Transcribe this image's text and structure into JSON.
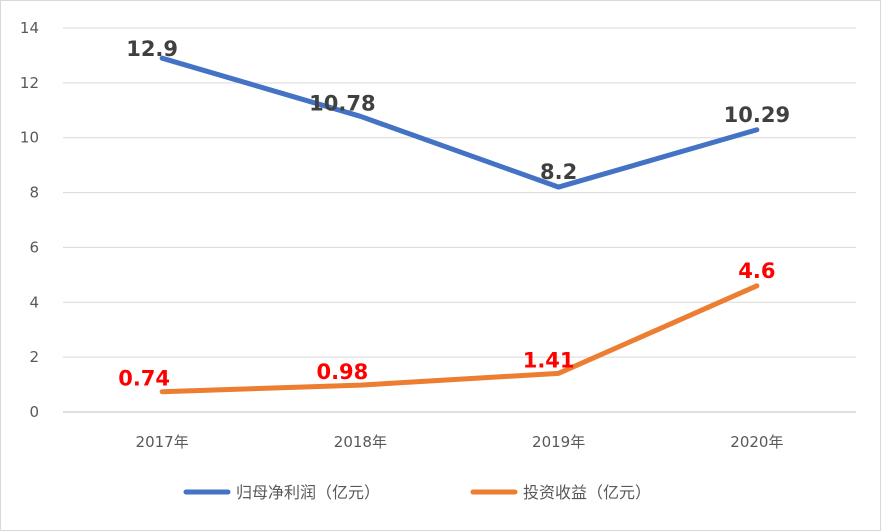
{
  "chart_data": {
    "type": "line",
    "categories": [
      "2017年",
      "2018年",
      "2019年",
      "2020年"
    ],
    "ylim": [
      0,
      14
    ],
    "yticks": [
      0,
      2,
      4,
      6,
      8,
      10,
      12,
      14
    ],
    "grid": true,
    "legend_position": "bottom",
    "series": [
      {
        "name": "归母净利润（亿元）",
        "values": [
          12.9,
          10.78,
          8.2,
          10.29
        ],
        "labels": [
          "12.9",
          "10.78",
          "8.2",
          "10.29"
        ],
        "color": "#4472c4",
        "label_color": "#404040"
      },
      {
        "name": "投资收益（亿元）",
        "values": [
          0.74,
          0.98,
          1.41,
          4.6
        ],
        "labels": [
          "0.74",
          "0.98",
          "1.41",
          "4.6"
        ],
        "color": "#ed7d31",
        "label_color": "#ff0000"
      }
    ]
  }
}
